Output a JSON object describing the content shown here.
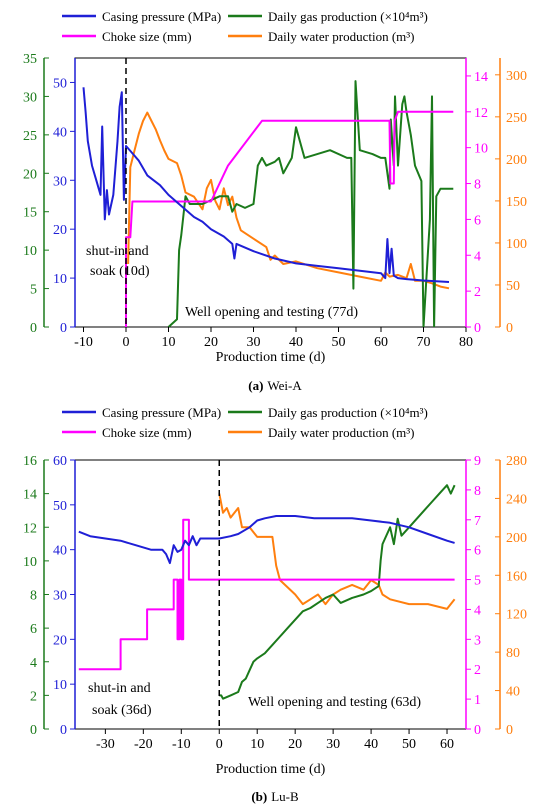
{
  "colors": {
    "casing": "#1f1fd6",
    "gas": "#1b7a1b",
    "choke": "#ff00ff",
    "water": "#ff7f0e",
    "axis": "#000000"
  },
  "chart_data": [
    {
      "type": "line",
      "caption_letter": "(a)",
      "caption_name": "Wei-A",
      "xlabel": "Production time (d)",
      "xlim": [
        -12,
        80
      ],
      "xticks": [
        -10,
        0,
        10,
        20,
        30,
        40,
        50,
        60,
        70,
        80
      ],
      "legend": {
        "casing": "Casing pressure (MPa)",
        "gas": "Daily gas production (×10⁴m³)",
        "choke": "Choke size (mm)",
        "water": "Daily water production (m³)"
      },
      "axes": {
        "gas": {
          "lim": [
            0,
            35
          ],
          "ticks": [
            0,
            5,
            10,
            15,
            20,
            25,
            30,
            35
          ]
        },
        "casing": {
          "lim": [
            0,
            55
          ],
          "ticks": [
            0,
            10,
            20,
            30,
            40,
            50
          ]
        },
        "choke": {
          "lim": [
            0,
            15
          ],
          "ticks": [
            0,
            2,
            4,
            6,
            8,
            10,
            12,
            14
          ]
        },
        "water": {
          "lim": [
            0,
            320
          ],
          "ticks": [
            0,
            50,
            100,
            150,
            200,
            250,
            300
          ]
        }
      },
      "annotations": {
        "shutin_line1": "shut-in and",
        "shutin_line2": "soak (10d)",
        "opening": "Well opening and testing (77d)"
      },
      "series": [
        {
          "key": "casing",
          "name": "Casing pressure (MPa)",
          "axis": "casing",
          "x": [
            -10,
            -9.5,
            -9,
            -8,
            -7,
            -6,
            -5.6,
            -5,
            -4.5,
            -4,
            -3,
            -2,
            -1.5,
            -1,
            -0.5,
            0,
            1,
            3,
            5,
            8,
            10,
            12,
            14,
            16,
            18,
            20,
            23,
            25,
            25.5,
            26,
            30,
            35,
            40,
            45,
            50,
            55,
            60,
            61,
            61.5,
            62,
            62.5,
            63,
            64,
            66,
            70,
            76
          ],
          "y": [
            49,
            44,
            38,
            33,
            30,
            27,
            41,
            22,
            28,
            23,
            27,
            38,
            45,
            48,
            26,
            37,
            36,
            34,
            31,
            29,
            27,
            25.5,
            24,
            22.5,
            21.5,
            20,
            18.5,
            17,
            14,
            17,
            15.5,
            14,
            13,
            12.5,
            12,
            11.5,
            11,
            10,
            18,
            11,
            16,
            10.5,
            10,
            9.8,
            9.5,
            9.2
          ]
        },
        {
          "key": "gas",
          "name": "Daily gas production (×10⁴m³)",
          "axis": "gas",
          "x": [
            10,
            12,
            12.5,
            13,
            14,
            15,
            16,
            17,
            18,
            20,
            22,
            24,
            25,
            26,
            28,
            30,
            31,
            32,
            33,
            35,
            36,
            37,
            39,
            40,
            42,
            45,
            48,
            52,
            53,
            53.5,
            54,
            55,
            58,
            60,
            61,
            62,
            62.3,
            63,
            63.3,
            64,
            65,
            65.5,
            66,
            67,
            68,
            69.5,
            70,
            71.5,
            72,
            72.5,
            73,
            74,
            77
          ],
          "y": [
            0,
            1,
            10,
            12,
            17,
            16,
            16,
            16,
            16,
            16.5,
            17,
            17,
            15,
            16,
            15.5,
            16,
            21,
            22,
            21,
            21.5,
            22,
            20,
            22,
            26,
            22,
            22.5,
            23,
            22,
            22,
            5,
            32,
            23,
            22.5,
            22,
            22,
            18,
            27,
            21,
            30,
            21,
            29,
            30,
            28,
            25,
            21,
            19,
            0,
            14,
            30,
            0,
            17,
            18,
            18
          ]
        },
        {
          "key": "choke",
          "name": "Choke size (mm)",
          "axis": "choke",
          "x": [
            0,
            0,
            1,
            1.5,
            2,
            10,
            12,
            20,
            24,
            32,
            40,
            62,
            62.2,
            63,
            63.2,
            64,
            77
          ],
          "y": [
            0,
            5,
            5,
            7,
            7,
            7,
            7,
            7,
            9,
            11.5,
            11.5,
            11.5,
            8,
            8,
            11.5,
            12,
            12
          ]
        },
        {
          "key": "water",
          "name": "Daily water production (m³)",
          "axis": "water",
          "x": [
            0.5,
            1,
            2,
            3,
            4,
            5,
            6,
            7,
            8,
            9,
            10,
            12,
            13,
            14,
            16,
            18,
            19,
            20,
            21,
            22,
            23,
            24,
            25,
            26,
            27,
            30,
            33,
            34,
            35,
            37,
            40,
            45,
            50,
            55,
            60,
            61,
            62,
            64,
            66,
            67,
            68,
            70,
            72,
            74,
            76
          ],
          "y": [
            75,
            190,
            210,
            230,
            245,
            255,
            245,
            235,
            222,
            210,
            200,
            195,
            180,
            160,
            155,
            140,
            165,
            175,
            150,
            140,
            165,
            145,
            155,
            130,
            115,
            105,
            95,
            80,
            85,
            75,
            78,
            70,
            65,
            60,
            55,
            65,
            60,
            62,
            58,
            75,
            55,
            55,
            52,
            48,
            46
          ]
        }
      ]
    },
    {
      "type": "line",
      "caption_letter": "(b)",
      "caption_name": "Lu-B",
      "xlabel": "Production time (d)",
      "xlim": [
        -38,
        65
      ],
      "xticks": [
        -30,
        -20,
        -10,
        0,
        10,
        20,
        30,
        40,
        50,
        60
      ],
      "legend": {
        "casing": "Casing pressure (MPa)",
        "gas": "Daily gas production (×10⁴m³)",
        "choke": "Choke size (mm)",
        "water": "Daily water production (m³)"
      },
      "axes": {
        "gas": {
          "lim": [
            0,
            16
          ],
          "ticks": [
            0,
            2,
            4,
            6,
            8,
            10,
            12,
            14,
            16
          ]
        },
        "casing": {
          "lim": [
            0,
            60
          ],
          "ticks": [
            0,
            10,
            20,
            30,
            40,
            50,
            60
          ]
        },
        "choke": {
          "lim": [
            0,
            9
          ],
          "ticks": [
            0,
            1,
            2,
            3,
            4,
            5,
            6,
            7,
            8,
            9
          ]
        },
        "water": {
          "lim": [
            0,
            280
          ],
          "ticks": [
            0,
            40,
            80,
            120,
            160,
            200,
            240,
            280
          ]
        }
      },
      "annotations": {
        "shutin_line1": "shut-in and",
        "shutin_line2": "soak (36d)",
        "opening": "Well opening and testing (63d)"
      },
      "series": [
        {
          "key": "casing",
          "name": "Casing pressure (MPa)",
          "axis": "casing",
          "x": [
            -37,
            -34,
            -30,
            -26,
            -22,
            -18,
            -15,
            -14,
            -13,
            -12,
            -11,
            -10,
            -9,
            -8,
            -7,
            -6,
            -5,
            -3,
            0,
            3,
            5,
            8,
            10,
            12,
            15,
            20,
            25,
            30,
            35,
            40,
            45,
            50,
            55,
            60,
            62
          ],
          "y": [
            44,
            43,
            42.5,
            42,
            41,
            40,
            40,
            39,
            37,
            41,
            39.5,
            40,
            42,
            41,
            43,
            41,
            42.5,
            42.5,
            42.5,
            43,
            43.5,
            45,
            46.5,
            47,
            47.5,
            47.5,
            47,
            47,
            47,
            46.5,
            46,
            45,
            43.5,
            42,
            41.5
          ]
        },
        {
          "key": "gas",
          "name": "Daily gas production (×10⁴m³)",
          "axis": "gas",
          "x": [
            0,
            0.5,
            1,
            3,
            5,
            6,
            7,
            8,
            9,
            10,
            12,
            14,
            16,
            18,
            20,
            22,
            24,
            26,
            28,
            30,
            32,
            35,
            38,
            40,
            42,
            42.5,
            43,
            45,
            46,
            47,
            48,
            50,
            52,
            54,
            56,
            58,
            60,
            61,
            62
          ],
          "y": [
            2,
            2,
            1.8,
            2,
            2.2,
            2.8,
            3,
            3.5,
            4,
            4.2,
            4.5,
            5,
            5.5,
            6,
            6.5,
            7,
            7.2,
            7.5,
            7.8,
            8,
            7.5,
            7.8,
            8,
            8.2,
            8.5,
            10,
            11,
            12,
            11,
            12.5,
            11.5,
            12,
            12.5,
            13,
            13.5,
            14,
            14.5,
            14,
            14.5
          ]
        },
        {
          "key": "choke",
          "name": "Choke size (mm)",
          "axis": "choke",
          "x": [
            -37,
            -26,
            -26,
            -19,
            -19,
            -12,
            -12,
            -11,
            -11,
            -10.5,
            -10.5,
            -10,
            -10,
            -9.5,
            -9.5,
            -8,
            -8,
            62
          ],
          "y": [
            2,
            2,
            3,
            3,
            4,
            4,
            5,
            5,
            3,
            3,
            5,
            5,
            3,
            3,
            7,
            7,
            5,
            5
          ]
        },
        {
          "key": "water",
          "name": "Daily water production (m³)",
          "axis": "water",
          "x": [
            0,
            1,
            2,
            3,
            5,
            6,
            8,
            9,
            10,
            14,
            15,
            16,
            20,
            22,
            24,
            26,
            28,
            30,
            32,
            35,
            38,
            40,
            42,
            43,
            45,
            50,
            55,
            60,
            62
          ],
          "y": [
            245,
            225,
            230,
            220,
            230,
            210,
            210,
            205,
            200,
            200,
            170,
            155,
            140,
            130,
            135,
            140,
            130,
            140,
            145,
            150,
            145,
            155,
            150,
            140,
            135,
            130,
            130,
            125,
            135
          ]
        }
      ]
    }
  ]
}
